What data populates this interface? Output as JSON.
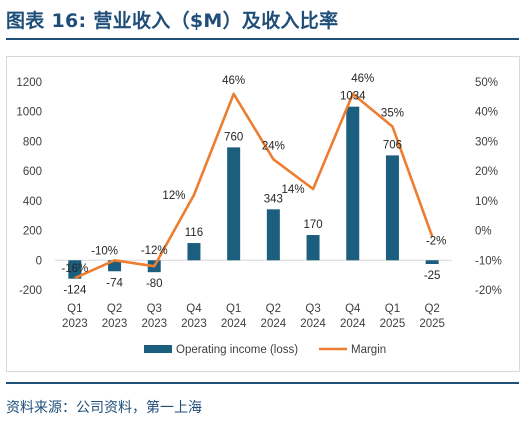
{
  "page": {
    "title": "图表 16: 营业收入（$M）及收入比率",
    "source": "资料来源：公司资料，第一上海",
    "accent": "#1f4e79"
  },
  "chart_data": {
    "type": "bar",
    "categories": [
      [
        "Q1",
        "2023"
      ],
      [
        "Q2",
        "2023"
      ],
      [
        "Q3",
        "2023"
      ],
      [
        "Q4",
        "2023"
      ],
      [
        "Q1",
        "2024"
      ],
      [
        "Q2",
        "2024"
      ],
      [
        "Q3",
        "2024"
      ],
      [
        "Q4",
        "2024"
      ],
      [
        "Q1",
        "2025"
      ],
      [
        "Q2",
        "2025"
      ]
    ],
    "series": [
      {
        "name": "Operating income (loss)",
        "kind": "bar",
        "axis": "left",
        "color": "#1b5e7e",
        "values": [
          -124,
          -74,
          -80,
          116,
          760,
          343,
          170,
          1034,
          706,
          -25
        ],
        "labels": [
          "-124",
          "-74",
          "-80",
          "116",
          "760",
          "343",
          "170",
          "1034",
          "706",
          "-25"
        ]
      },
      {
        "name": "Margin",
        "kind": "line",
        "axis": "right",
        "color": "#ed7d31",
        "values": [
          -16,
          -10,
          -12,
          12,
          46,
          24,
          14,
          46,
          35,
          -2
        ],
        "labels": [
          "-16%",
          "-10%",
          "-12%",
          "12%",
          "46%",
          "24%",
          "14%",
          "46%",
          "35%",
          "-2%"
        ]
      }
    ],
    "y_left": {
      "min": -200,
      "max": 1200,
      "ticks": [
        -200,
        0,
        200,
        400,
        600,
        800,
        1000,
        1200
      ],
      "tick_labels": [
        "-200",
        "0",
        "200",
        "400",
        "600",
        "800",
        "1000",
        "1200"
      ]
    },
    "y_right": {
      "min": -20,
      "max": 50,
      "ticks": [
        -20,
        -10,
        0,
        10,
        20,
        30,
        40,
        50
      ],
      "tick_labels": [
        "-20%",
        "-10%",
        "0%",
        "10%",
        "20%",
        "30%",
        "40%",
        "50%"
      ]
    },
    "grid": false,
    "legend": "bottom",
    "xlabel": "",
    "ylabel": ""
  }
}
